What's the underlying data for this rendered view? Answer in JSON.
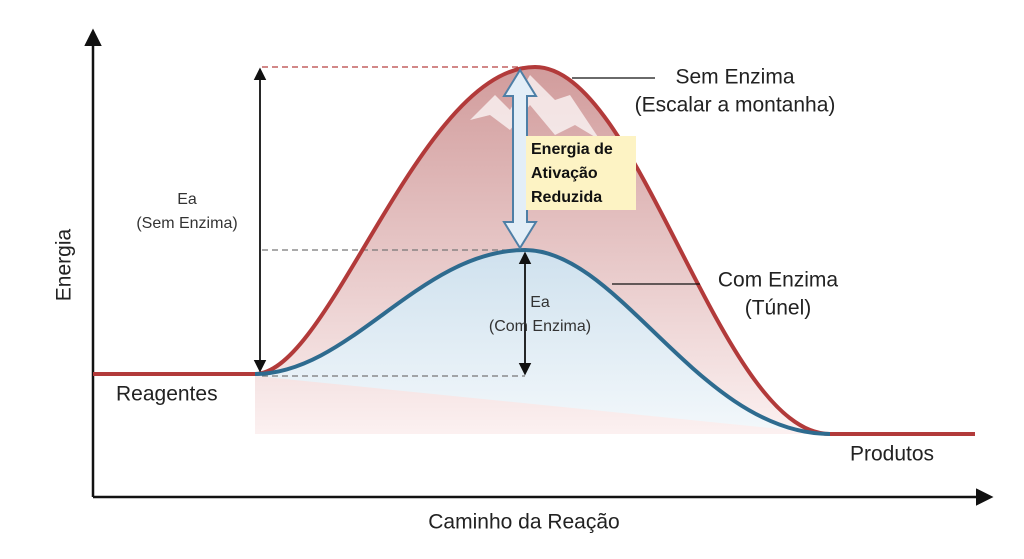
{
  "axes": {
    "y_label": "Energia",
    "x_label": "Caminho da Reação"
  },
  "endpoints": {
    "reactants": "Reagentes",
    "products": "Produtos"
  },
  "curves": [
    {
      "name": "Sem Enzima",
      "note": "(Escalar a montanha)"
    },
    {
      "name": "Com Enzima",
      "note": "(Túnel)"
    }
  ],
  "annotations": {
    "ea_without": [
      "Ea",
      "(Sem Enzima)"
    ],
    "ea_with": [
      "Ea",
      "(Com Enzima)"
    ],
    "reduced": [
      "Energia de",
      "Ativação",
      "Reduzida"
    ]
  }
}
